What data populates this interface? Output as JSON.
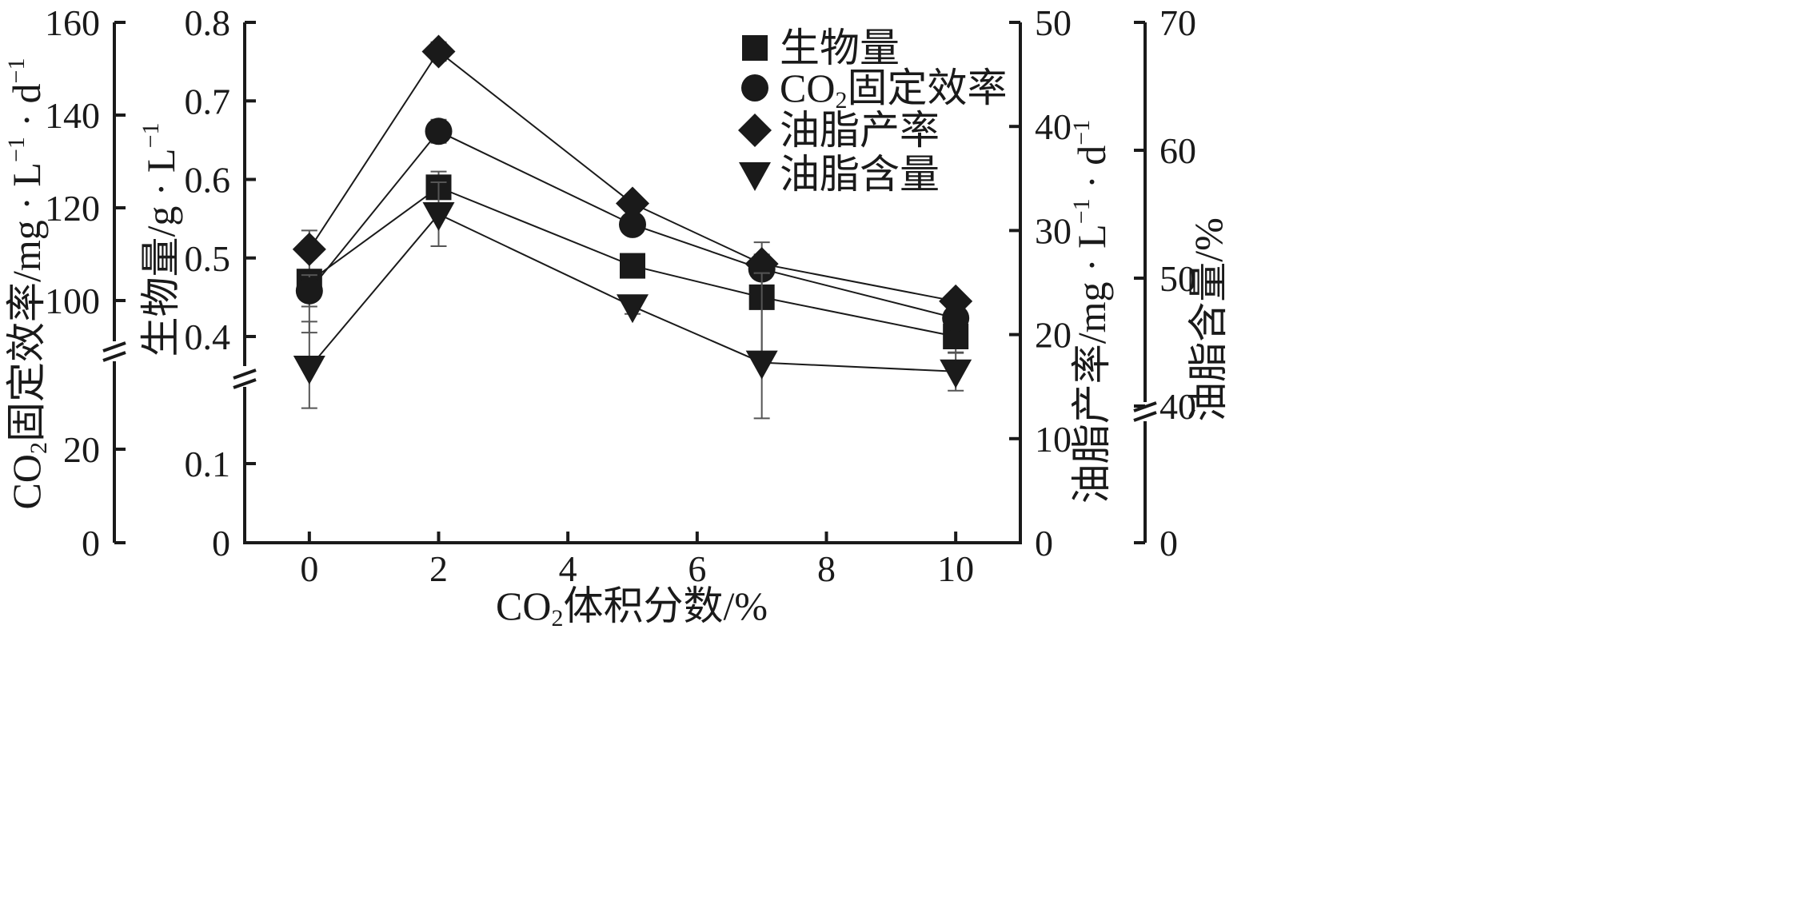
{
  "chart_data": {
    "type": "line",
    "x_axis": {
      "label": "CO2体积分数/%",
      "label_parts": [
        "CO",
        "2",
        "体积分数/%"
      ],
      "ticks": [
        0,
        2,
        4,
        6,
        8,
        10
      ],
      "range": [
        -1,
        11
      ]
    },
    "axes": {
      "co2": {
        "label": "CO2固定效率/mg · L-1 · d-1",
        "label_parts": [
          "CO",
          "2",
          "固定效率/mg · L",
          "−1",
          " · d",
          "−1"
        ],
        "ticks": [
          0,
          20,
          100,
          120,
          140,
          160
        ]
      },
      "biomass": {
        "label": "生物量/g · L-1",
        "label_parts": [
          "生物量/g · L",
          "−1"
        ],
        "ticks": [
          0,
          0.1,
          0.4,
          0.5,
          0.6,
          0.7,
          0.8
        ]
      },
      "productivity": {
        "label": "油脂产率/mg · L-1 · d-1",
        "label_parts": [
          "油脂产率/mg · L",
          "−1",
          " · d",
          "−1"
        ],
        "ticks": [
          0,
          10,
          20,
          30,
          40,
          50
        ]
      },
      "content": {
        "label": "油脂含量/%",
        "ticks": [
          0,
          40,
          50,
          60,
          70
        ]
      }
    },
    "legend": {
      "position": "top-right",
      "entries": [
        {
          "series": "biomass",
          "label": "生物量",
          "parts": [
            "生物量"
          ]
        },
        {
          "series": "co2",
          "label": "CO2固定效率",
          "parts": [
            "CO",
            "2",
            "固定效率"
          ]
        },
        {
          "series": "productivity",
          "label": "油脂产率",
          "parts": [
            "油脂产率"
          ]
        },
        {
          "series": "content",
          "label": "油脂含量",
          "parts": [
            "油脂含量"
          ]
        }
      ]
    },
    "series": [
      {
        "key": "biomass",
        "name": "生物量",
        "axis": "biomass",
        "marker": "square",
        "x": [
          0,
          2,
          5,
          7,
          10
        ],
        "values": [
          0.47,
          0.59,
          0.49,
          0.45,
          0.4
        ],
        "error": [
          0.065,
          0.02,
          0.006,
          0.07,
          0.021
        ]
      },
      {
        "key": "co2",
        "name": "CO2固定效率",
        "axis": "co2",
        "marker": "circle",
        "x": [
          0,
          2,
          5,
          7,
          10
        ],
        "values": [
          102.1,
          136.5,
          116.4,
          106.8,
          96.2
        ],
        "error": [
          3.4,
          2.5,
          1.5,
          2.0,
          1.5
        ]
      },
      {
        "key": "productivity",
        "name": "油脂产率",
        "axis": "productivity",
        "marker": "diamond",
        "x": [
          0,
          2,
          5,
          7,
          10
        ],
        "values": [
          28.2,
          47.2,
          32.6,
          26.8,
          23.2
        ],
        "error": [
          0.8,
          0.9,
          0.7,
          0.9,
          0.7
        ]
      },
      {
        "key": "content",
        "name": "油脂含量",
        "axis": "content",
        "marker": "triangle-down",
        "x": [
          0,
          2,
          5,
          7,
          10
        ],
        "values": [
          43.0,
          55.0,
          47.8,
          43.4,
          42.7
        ],
        "error": [
          3.6,
          2.5,
          0.6,
          7.0,
          1.5
        ]
      }
    ]
  }
}
